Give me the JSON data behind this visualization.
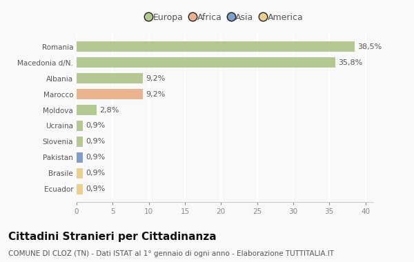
{
  "categories": [
    "Romania",
    "Macedonia d/N.",
    "Albania",
    "Marocco",
    "Moldova",
    "Ucraina",
    "Slovenia",
    "Pakistan",
    "Brasile",
    "Ecuador"
  ],
  "values": [
    38.5,
    35.8,
    9.2,
    9.2,
    2.8,
    0.9,
    0.9,
    0.9,
    0.9,
    0.9
  ],
  "labels": [
    "38,5%",
    "35,8%",
    "9,2%",
    "9,2%",
    "2,8%",
    "0,9%",
    "0,9%",
    "0,9%",
    "0,9%",
    "0,9%"
  ],
  "colors": [
    "#a8c080",
    "#a8c080",
    "#a8c080",
    "#e8a87c",
    "#a8c080",
    "#a8c080",
    "#a8c080",
    "#6b8fc0",
    "#e8c87c",
    "#e8c87c"
  ],
  "legend": [
    {
      "label": "Europa",
      "color": "#a8c080"
    },
    {
      "label": "Africa",
      "color": "#e8a87c"
    },
    {
      "label": "Asia",
      "color": "#6b8fc0"
    },
    {
      "label": "America",
      "color": "#e8c87c"
    }
  ],
  "xlim": [
    0,
    41
  ],
  "xticks": [
    0,
    5,
    10,
    15,
    20,
    25,
    30,
    35,
    40
  ],
  "title": "Cittadini Stranieri per Cittadinanza",
  "subtitle": "COMUNE DI CLOZ (TN) - Dati ISTAT al 1° gennaio di ogni anno - Elaborazione TUTTITALIA.IT",
  "background_color": "#f9f9f9",
  "grid_color": "#ffffff",
  "bar_height": 0.65,
  "title_fontsize": 11,
  "subtitle_fontsize": 7.5,
  "label_fontsize": 8,
  "tick_fontsize": 7.5,
  "legend_fontsize": 9
}
